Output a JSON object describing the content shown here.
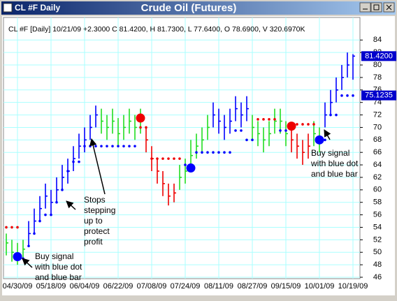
{
  "window": {
    "title": "CL #F Daily"
  },
  "chart_data": {
    "type": "ohlc",
    "title": "Crude Oil (Futures)",
    "subtitle": "CL #F [Daily] 10/21/09 +2.3000 C 81.4200, H 81.7300, L 77.6400, O 78.6900, V 320.6970K",
    "categories": [
      null,
      null,
      "04/30/09",
      null,
      null,
      null,
      null,
      null,
      "05/18/09",
      null,
      null,
      null,
      null,
      null,
      "06/04/09",
      null,
      null,
      null,
      null,
      null,
      "06/22/09",
      null,
      null,
      null,
      null,
      null,
      "07/08/09",
      null,
      null,
      null,
      null,
      null,
      "07/24/09",
      null,
      null,
      null,
      null,
      null,
      "08/11/09",
      null,
      null,
      null,
      null,
      null,
      "08/27/09",
      null,
      null,
      null,
      null,
      null,
      "09/15/09",
      null,
      null,
      null,
      null,
      null,
      "10/01/09",
      null,
      null,
      null,
      null,
      null,
      "10/19/09"
    ],
    "high": [
      53,
      52,
      51.5,
      52,
      55,
      57,
      59,
      61,
      60,
      62,
      64,
      65,
      67,
      69,
      70,
      72,
      73.5,
      73,
      72,
      73,
      71.5,
      72,
      73,
      72,
      73,
      70,
      67,
      65,
      63,
      61,
      61,
      64,
      65,
      68,
      69,
      70,
      72,
      74,
      73,
      72,
      73,
      75,
      74,
      75,
      72,
      71,
      70,
      71,
      73,
      73,
      71,
      70,
      69,
      68,
      69,
      71,
      70,
      74,
      76,
      78,
      80,
      82,
      81.73
    ],
    "low": [
      49.5,
      48.5,
      48,
      49,
      51,
      53,
      55,
      57,
      56,
      58,
      60,
      61,
      63,
      65,
      66,
      68,
      70,
      69,
      68,
      69,
      67,
      68,
      69,
      68,
      69,
      66,
      63,
      61,
      59,
      57.5,
      58,
      60,
      61,
      63.5,
      65,
      66,
      68,
      70,
      69,
      68,
      69,
      71,
      70,
      71,
      68,
      67,
      66,
      67,
      69,
      69,
      67,
      66,
      65,
      64,
      65,
      67,
      66,
      70,
      72,
      74,
      76,
      78,
      77.64
    ],
    "close": [
      51.5,
      50,
      49.5,
      50.5,
      53,
      55,
      57,
      59,
      58,
      60,
      62,
      63,
      65,
      67,
      68,
      70,
      72,
      71,
      70,
      71,
      69,
      70,
      71,
      70,
      71,
      68,
      65,
      63,
      61,
      59,
      59.5,
      62,
      63,
      65.5,
      67,
      68,
      70,
      72,
      71,
      70,
      71,
      73,
      72,
      73,
      70,
      69,
      68,
      69,
      71,
      71,
      69,
      68,
      67,
      66,
      67,
      69,
      68,
      72,
      74,
      76,
      78,
      80,
      81.42
    ],
    "bar_colors": [
      "#22dd22",
      "#22dd22",
      "#22dd22",
      "#22dd22",
      "#0000ff",
      "#0000ff",
      "#0000ff",
      "#0000ff",
      "#0000ff",
      "#0000ff",
      "#0000ff",
      "#0000ff",
      "#0000ff",
      "#0000ff",
      "#0000ff",
      "#0000ff",
      "#0000ff",
      "#22dd22",
      "#22dd22",
      "#22dd22",
      "#22dd22",
      "#22dd22",
      "#22dd22",
      "#22dd22",
      "#22dd22",
      "#ee0000",
      "#ee0000",
      "#ee0000",
      "#ee0000",
      "#ee0000",
      "#ee0000",
      "#22dd22",
      "#22dd22",
      "#22dd22",
      "#22dd22",
      "#22dd22",
      "#22dd22",
      "#0000ff",
      "#0000ff",
      "#0000ff",
      "#0000ff",
      "#0000ff",
      "#0000ff",
      "#0000ff",
      "#22dd22",
      "#22dd22",
      "#22dd22",
      "#22dd22",
      "#22dd22",
      "#22dd22",
      "#22dd22",
      "#ee0000",
      "#ee0000",
      "#ee0000",
      "#ee0000",
      "#22dd22",
      "#22dd22",
      "#0000ff",
      "#0000ff",
      "#0000ff",
      "#0000ff",
      "#0000ff",
      "#0000ff"
    ],
    "stops": [
      54,
      54,
      54,
      49,
      51,
      53,
      55,
      56,
      56,
      58,
      60,
      63,
      64.5,
      64.5,
      67,
      67,
      67,
      67,
      67,
      67,
      67,
      67,
      67,
      67,
      70,
      70,
      65,
      65,
      65,
      65,
      65,
      65,
      64,
      63,
      66,
      66,
      66,
      66,
      66,
      66,
      66,
      69.5,
      69.5,
      68,
      68,
      71.3,
      71.3,
      71.3,
      71.3,
      69.5,
      69.5,
      70.5,
      70.5,
      70.5,
      70.5,
      70.5,
      68,
      68,
      72,
      72,
      75.1,
      75.1,
      75.1
    ],
    "stop_colors": [
      "#ee0000",
      "#ee0000",
      "#ee0000",
      "#0000ff",
      "#0000ff",
      "#0000ff",
      "#0000ff",
      "#0000ff",
      "#0000ff",
      "#0000ff",
      "#0000ff",
      "#0000ff",
      "#0000ff",
      "#0000ff",
      "#0000ff",
      "#0000ff",
      "#0000ff",
      "#0000ff",
      "#0000ff",
      "#0000ff",
      "#0000ff",
      "#0000ff",
      "#0000ff",
      "#0000ff",
      "#ee0000",
      "#ee0000",
      "#ee0000",
      "#ee0000",
      "#ee0000",
      "#ee0000",
      "#ee0000",
      "#ee0000",
      "#0000ff",
      "#0000ff",
      "#0000ff",
      "#0000ff",
      "#0000ff",
      "#0000ff",
      "#0000ff",
      "#0000ff",
      "#0000ff",
      "#0000ff",
      "#0000ff",
      "#0000ff",
      "#0000ff",
      "#ee0000",
      "#ee0000",
      "#ee0000",
      "#ee0000",
      "#0000ff",
      "#0000ff",
      "#ee0000",
      "#ee0000",
      "#ee0000",
      "#ee0000",
      "#ee0000",
      "#0000ff",
      "#0000ff",
      "#0000ff",
      "#0000ff",
      "#0000ff",
      "#0000ff",
      "#0000ff"
    ],
    "signals": [
      null,
      null,
      49.3,
      null,
      null,
      null,
      null,
      null,
      null,
      null,
      null,
      null,
      null,
      null,
      null,
      null,
      null,
      null,
      null,
      null,
      null,
      null,
      null,
      null,
      71.5,
      null,
      null,
      null,
      null,
      null,
      null,
      null,
      null,
      63.5,
      null,
      null,
      null,
      null,
      null,
      null,
      null,
      null,
      null,
      null,
      null,
      null,
      null,
      null,
      null,
      null,
      null,
      70.2,
      null,
      null,
      null,
      null,
      68,
      null,
      null,
      null,
      null,
      null,
      null
    ],
    "signal_colors": [
      null,
      null,
      "#0000ff",
      null,
      null,
      null,
      null,
      null,
      null,
      null,
      null,
      null,
      null,
      null,
      null,
      null,
      null,
      null,
      null,
      null,
      null,
      null,
      null,
      null,
      "#ee0000",
      null,
      null,
      null,
      null,
      null,
      null,
      null,
      null,
      "#0000ff",
      null,
      null,
      null,
      null,
      null,
      null,
      null,
      null,
      null,
      null,
      null,
      null,
      null,
      null,
      null,
      null,
      null,
      "#ee0000",
      null,
      null,
      null,
      null,
      "#0000ff",
      null,
      null,
      null,
      null,
      null,
      null
    ],
    "ylim": [
      46,
      87.5
    ],
    "yticks": [
      46,
      48,
      50,
      52,
      54,
      56,
      58,
      60,
      62,
      64,
      66,
      68,
      70,
      72,
      74,
      76,
      78,
      80,
      82,
      84
    ],
    "price_labels": [
      {
        "value": 81.42,
        "label": "81.4200"
      },
      {
        "value": 75.1235,
        "label": "75.1235"
      }
    ],
    "grid": true,
    "annotations": [
      {
        "lines": [
          "Buy signal",
          "with blue dot",
          "and blue bar"
        ]
      },
      {
        "lines": [
          "Stops",
          "stepping",
          "up to",
          "protect",
          "profit"
        ]
      },
      {
        "lines": [
          "Buy signal",
          "with blue dot",
          "and blue bar"
        ]
      }
    ]
  }
}
